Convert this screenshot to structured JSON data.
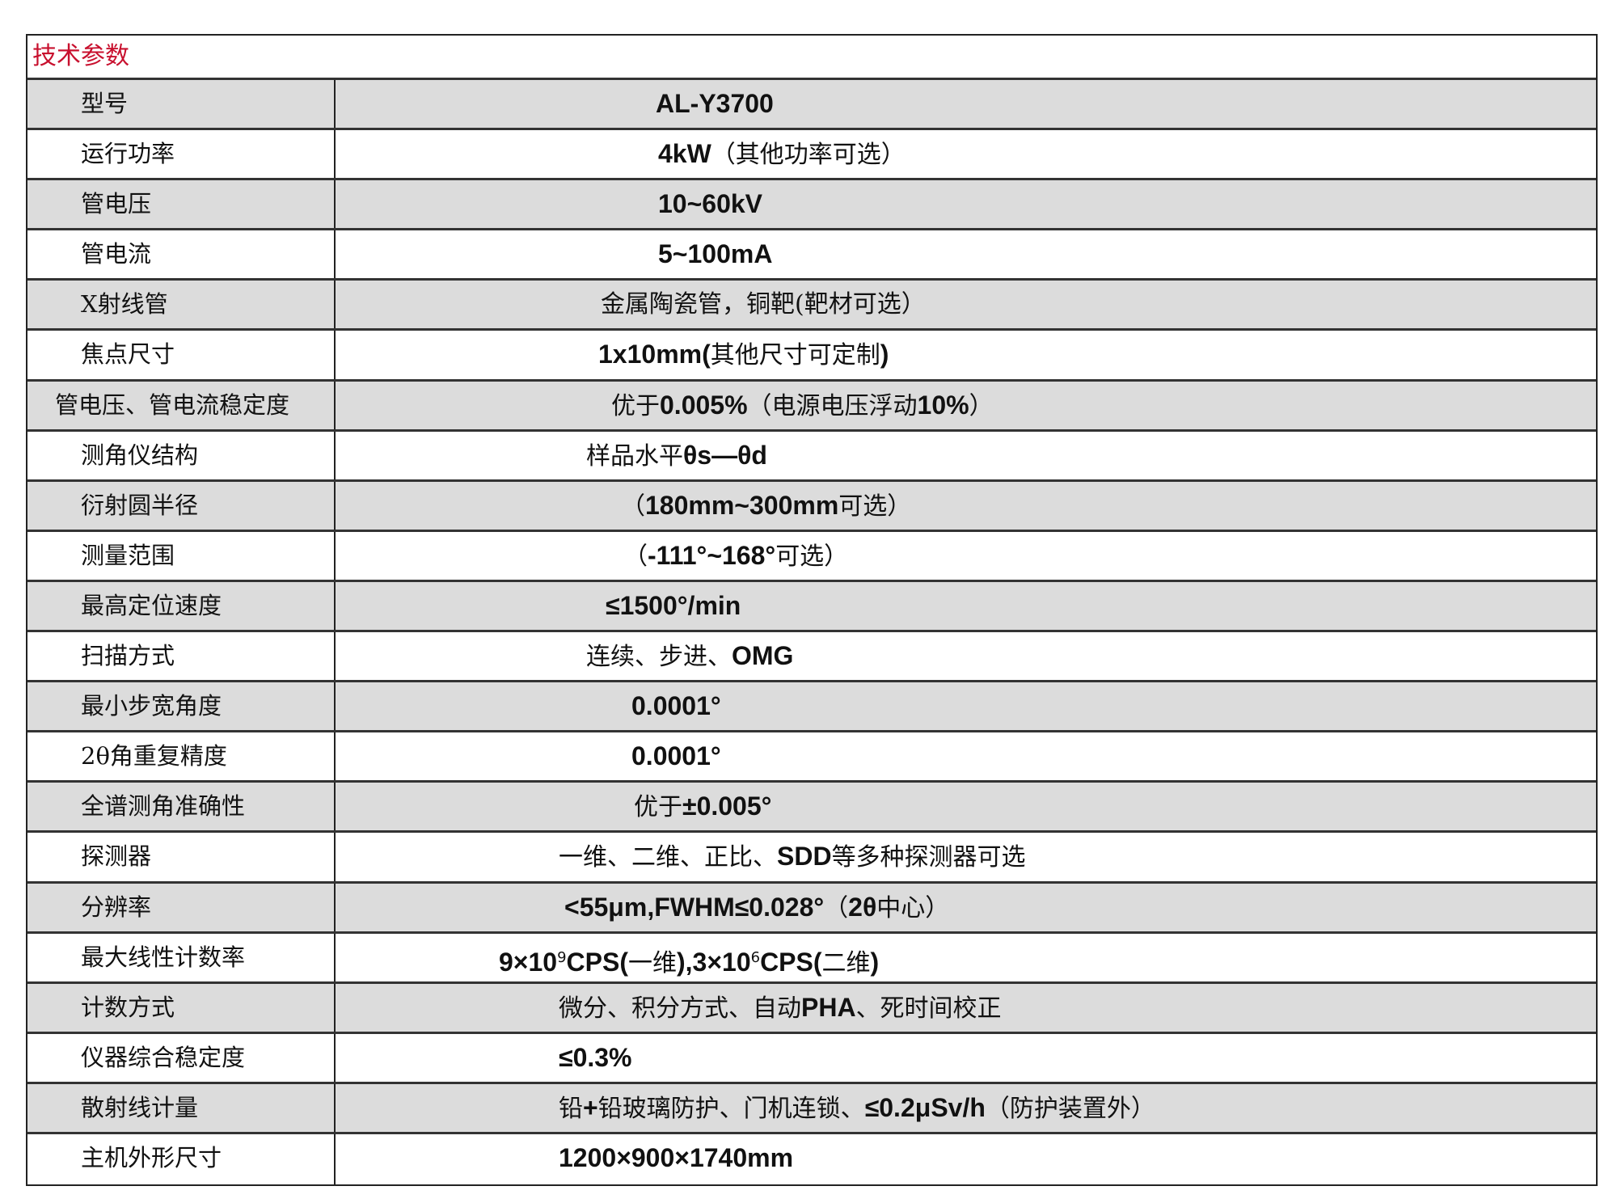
{
  "title": "技术参数",
  "accent_color": "#c8102e",
  "rows": [
    {
      "label": "型号",
      "value": [
        {
          "t": "AL-Y3700",
          "b": true
        }
      ]
    },
    {
      "label": "运行功率",
      "value": [
        {
          "t": "4kW",
          "b": true
        },
        {
          "t": "（其他功率可选）"
        }
      ]
    },
    {
      "label": "管电压",
      "value": [
        {
          "t": "10~60kV",
          "b": true
        }
      ]
    },
    {
      "label": "管电流",
      "value": [
        {
          "t": "5~100mA",
          "b": true
        }
      ]
    },
    {
      "label": "X射线管",
      "value": [
        {
          "t": "金属陶瓷管，铜靶(靶材可选）"
        }
      ]
    },
    {
      "label": "焦点尺寸",
      "value": [
        {
          "t": "1x10mm(",
          "b": true
        },
        {
          "t": "其他尺寸可定制"
        },
        {
          "t": ")",
          "b": true
        }
      ]
    },
    {
      "label": "管电压、管电流稳定度",
      "value": [
        {
          "t": "优于"
        },
        {
          "t": "0.005%",
          "b": true
        },
        {
          "t": "（电源电压浮动"
        },
        {
          "t": "10%",
          "b": true
        },
        {
          "t": "）"
        }
      ]
    },
    {
      "label": "测角仪结构",
      "value": [
        {
          "t": "样品水平"
        },
        {
          "t": "θs—θd",
          "b": true
        }
      ]
    },
    {
      "label": "衍射圆半径",
      "value": [
        {
          "t": "（"
        },
        {
          "t": "180mm~300mm",
          "b": true
        },
        {
          "t": "可选）"
        }
      ]
    },
    {
      "label": "测量范围",
      "value": [
        {
          "t": "（"
        },
        {
          "t": "-111°~168°",
          "b": true
        },
        {
          "t": "可选）"
        }
      ]
    },
    {
      "label": "最高定位速度",
      "value": [
        {
          "t": "≤1500°/min",
          "b": true
        }
      ]
    },
    {
      "label": "扫描方式",
      "value": [
        {
          "t": "连续、步进、"
        },
        {
          "t": "OMG",
          "b": true
        }
      ]
    },
    {
      "label": "最小步宽角度",
      "value": [
        {
          "t": "0.0001°",
          "b": true
        }
      ]
    },
    {
      "label": "2θ角重复精度",
      "value": [
        {
          "t": "0.0001°",
          "b": true
        }
      ]
    },
    {
      "label": "全谱测角准确性",
      "value": [
        {
          "t": "优于"
        },
        {
          "t": "±0.005°",
          "b": true
        }
      ]
    },
    {
      "label": "探测器",
      "value": [
        {
          "t": "一维、二维、正比、"
        },
        {
          "t": "SDD",
          "b": true
        },
        {
          "t": "等多种探测器可选"
        }
      ]
    },
    {
      "label": "分辨率",
      "value": [
        {
          "t": "<55μm,FWHM≤0.028°",
          "b": true
        },
        {
          "t": "（"
        },
        {
          "t": "2θ",
          "b": true
        },
        {
          "t": "中心）"
        }
      ]
    },
    {
      "label": "最大线性计数率",
      "value": [
        {
          "t": "9×10",
          "b": true
        },
        {
          "t": "9",
          "b": true,
          "sup": true
        },
        {
          "t": "CPS(",
          "b": true
        },
        {
          "t": "一维"
        },
        {
          "t": "),3×10",
          "b": true
        },
        {
          "t": "6",
          "b": true,
          "sup": true
        },
        {
          "t": "CPS(",
          "b": true
        },
        {
          "t": "二维"
        },
        {
          "t": ")",
          "b": true
        }
      ]
    },
    {
      "label": "计数方式",
      "value": [
        {
          "t": "微分、积分方式、自动"
        },
        {
          "t": "PHA",
          "b": true
        },
        {
          "t": "、死时间校正"
        }
      ]
    },
    {
      "label": "仪器综合稳定度",
      "value": [
        {
          "t": "≤0.3%",
          "b": true
        }
      ]
    },
    {
      "label": "散射线计量",
      "value": [
        {
          "t": "铅"
        },
        {
          "t": "+",
          "b": true
        },
        {
          "t": "铅玻璃防护、门机连锁、"
        },
        {
          "t": "≤0.2μSv/h",
          "b": true
        },
        {
          "t": "（防护装置外）"
        }
      ]
    },
    {
      "label": "主机外形尺寸",
      "value": [
        {
          "t": "1200×900×1740mm",
          "b": true
        }
      ]
    }
  ]
}
